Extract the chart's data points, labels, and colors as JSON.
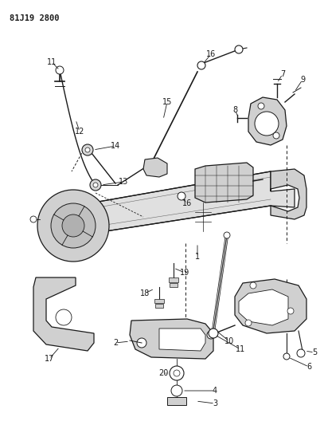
{
  "title": "81J19 2800",
  "bg_color": "#ffffff",
  "line_color": "#1a1a1a",
  "figsize": [
    4.07,
    5.33
  ],
  "dpi": 100
}
